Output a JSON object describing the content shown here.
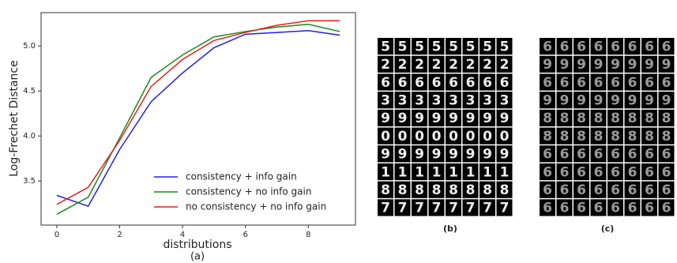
{
  "chart_data": {
    "type": "line",
    "x": [
      0,
      1,
      2,
      3,
      4,
      5,
      6,
      7,
      8,
      9
    ],
    "x_label": "distributions",
    "y_label": "Log-Frechet Distance",
    "caption": "(a)",
    "xlim": [
      -0.5,
      9.5
    ],
    "xticks": [
      0,
      2,
      4,
      6,
      8
    ],
    "ylim": [
      3.01,
      5.37
    ],
    "yticks": [
      3.5,
      {
        "value": 4,
        "label": "4.0"
      },
      4.5,
      {
        "value": 5,
        "label": "5.0"
      }
    ],
    "legend": "lower right",
    "series": [
      {
        "name": "consistency + info gain",
        "color": "#2020ee",
        "values": [
          3.34,
          3.22,
          3.85,
          4.38,
          4.7,
          4.98,
          5.13,
          5.15,
          5.17,
          5.12
        ]
      },
      {
        "name": "consistency + no info gain",
        "color": "#1a8a1a",
        "values": [
          3.13,
          3.32,
          3.98,
          4.65,
          4.9,
          5.1,
          5.16,
          5.21,
          5.24,
          5.16
        ]
      },
      {
        "name": "no consistency + no info gain",
        "color": "#ee1c1c",
        "values": [
          3.24,
          3.43,
          3.95,
          4.55,
          4.85,
          5.06,
          5.15,
          5.23,
          5.28,
          5.28
        ]
      }
    ]
  },
  "panels": [
    {
      "caption": "(b)",
      "rows": [
        "5",
        "2",
        "6",
        "3",
        "9",
        "0",
        "9",
        "1",
        "8",
        "7"
      ]
    },
    {
      "caption": "(c)",
      "rows": [
        "6",
        "9",
        "6",
        "9",
        "8",
        "8",
        "6",
        "6",
        "6",
        "6"
      ]
    }
  ]
}
